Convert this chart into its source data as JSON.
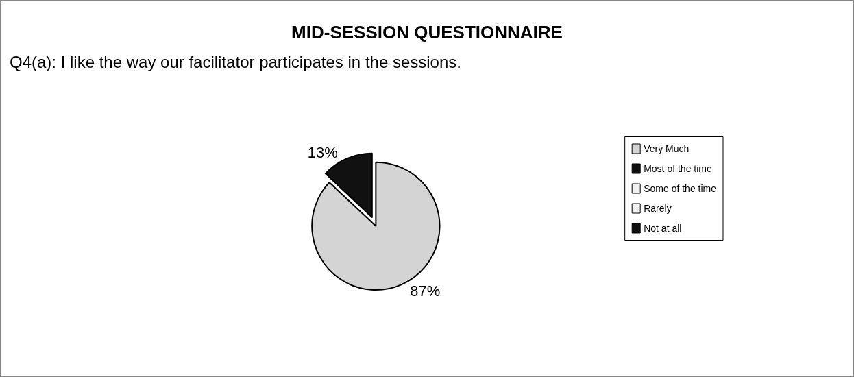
{
  "chart_data": {
    "type": "pie",
    "title": "MID-SESSION QUESTIONNAIRE",
    "subtitle": "Q4(a): I like the way our facilitator participates in the sessions.",
    "categories": [
      "Very Much",
      "Most of the time",
      "Some of the time",
      "Rarely",
      "Not at all"
    ],
    "values": [
      87,
      13,
      0,
      0,
      0
    ],
    "value_labels": [
      "87%",
      "13%",
      null,
      null,
      null
    ],
    "colors": [
      "#d4d4d4",
      "#111111",
      "#f2f2f2",
      "#f2f2f2",
      "#111111"
    ],
    "legend": "right"
  }
}
